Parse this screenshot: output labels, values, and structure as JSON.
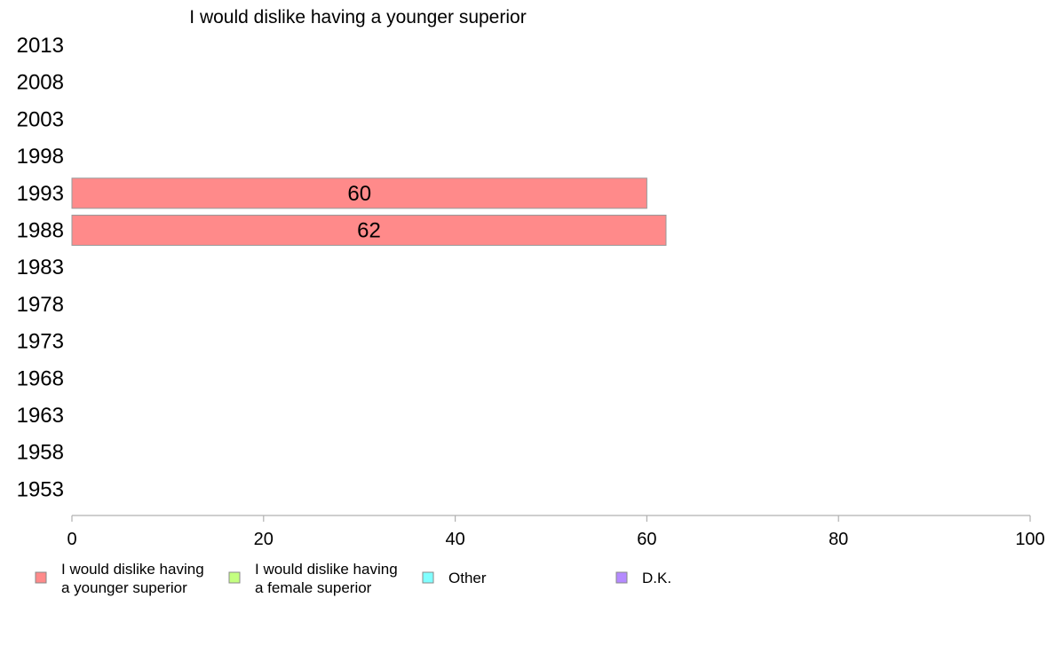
{
  "chart_data": {
    "type": "bar",
    "orientation": "horizontal",
    "title": "I would dislike having a younger superior",
    "xlabel": "",
    "ylabel": "",
    "xlim": [
      0,
      100
    ],
    "x_ticks": [
      "0",
      "20",
      "40",
      "60",
      "80",
      "100"
    ],
    "categories": [
      "2013",
      "2008",
      "2003",
      "1998",
      "1993",
      "1988",
      "1983",
      "1978",
      "1973",
      "1968",
      "1963",
      "1958",
      "1953"
    ],
    "series": [
      {
        "name": "I would dislike having a younger superior",
        "color": "#ff8a8a",
        "values": [
          null,
          null,
          null,
          null,
          60,
          62,
          null,
          null,
          null,
          null,
          null,
          null,
          null
        ]
      },
      {
        "name": "I would dislike having a female superior",
        "color": "#c4ff80",
        "values": [
          null,
          null,
          null,
          null,
          null,
          null,
          null,
          null,
          null,
          null,
          null,
          null,
          null
        ]
      },
      {
        "name": "Other",
        "color": "#80ffff",
        "values": [
          null,
          null,
          null,
          null,
          null,
          null,
          null,
          null,
          null,
          null,
          null,
          null,
          null
        ]
      },
      {
        "name": "D.K.",
        "color": "#b58aff",
        "values": [
          null,
          null,
          null,
          null,
          null,
          null,
          null,
          null,
          null,
          null,
          null,
          null,
          null
        ]
      }
    ],
    "legend": {
      "placement": "bottom",
      "entries": [
        [
          "I would dislike having",
          "a younger superior"
        ],
        [
          "I would dislike having",
          "a female superior"
        ],
        [
          "Other"
        ],
        [
          "D.K."
        ]
      ]
    },
    "grid": false
  }
}
